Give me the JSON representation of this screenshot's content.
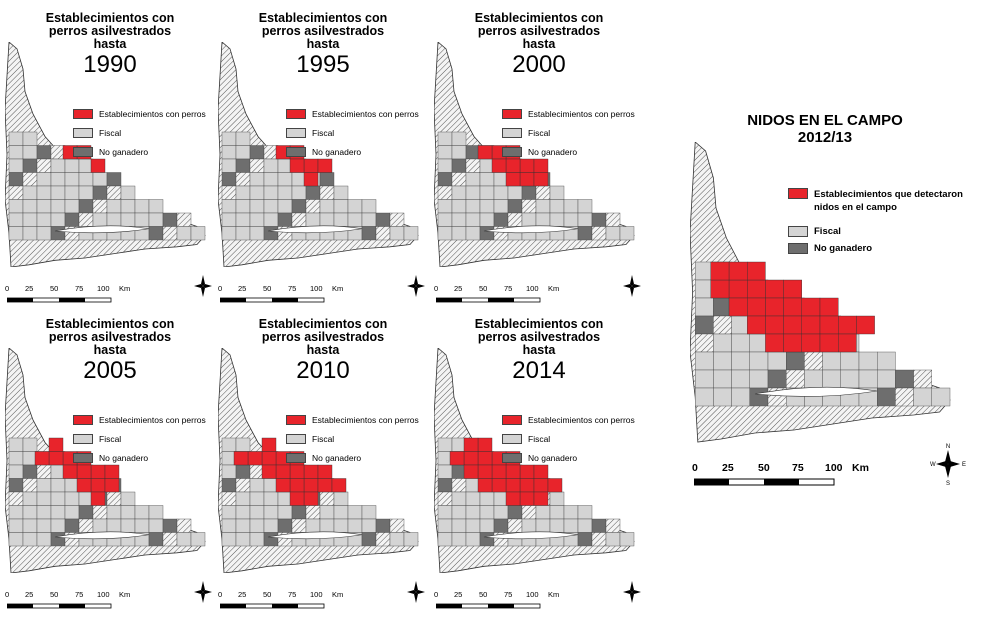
{
  "panel_title": [
    "Establecimientos con",
    "perros asilvestrados",
    "hasta"
  ],
  "panels": [
    {
      "year": "1990",
      "coverage": 0.08
    },
    {
      "year": "1995",
      "coverage": 0.18
    },
    {
      "year": "2000",
      "coverage": 0.28
    },
    {
      "year": "2005",
      "coverage": 0.36
    },
    {
      "year": "2010",
      "coverage": 0.5
    },
    {
      "year": "2014",
      "coverage": 0.62
    }
  ],
  "legend": [
    {
      "label": "Establecimientos con perros",
      "color": "#e8242b"
    },
    {
      "label": "Fiscal",
      "color": "#d4d4d4"
    },
    {
      "label": "No ganadero",
      "color": "#6e6e6e"
    }
  ],
  "scale": {
    "ticks": [
      "0",
      "25",
      "50",
      "75",
      "100"
    ],
    "unit": "Km"
  },
  "compass": {
    "n": "N",
    "s": "S",
    "e": "E",
    "w": "W"
  },
  "big_map": {
    "title": "NIDOS EN EL CAMPO",
    "subtitle": "2012/13",
    "legend": [
      {
        "label": "Establecimientos que detectaron nidos en el campo",
        "color": "#e8242b"
      },
      {
        "label": "Fiscal",
        "color": "#d4d4d4"
      },
      {
        "label": "No ganadero",
        "color": "#6e6e6e"
      }
    ]
  },
  "colors": {
    "red": "#e8242b",
    "fiscal": "#d4d4d4",
    "noganadero": "#6e6e6e",
    "land": "#e6e6e6"
  }
}
